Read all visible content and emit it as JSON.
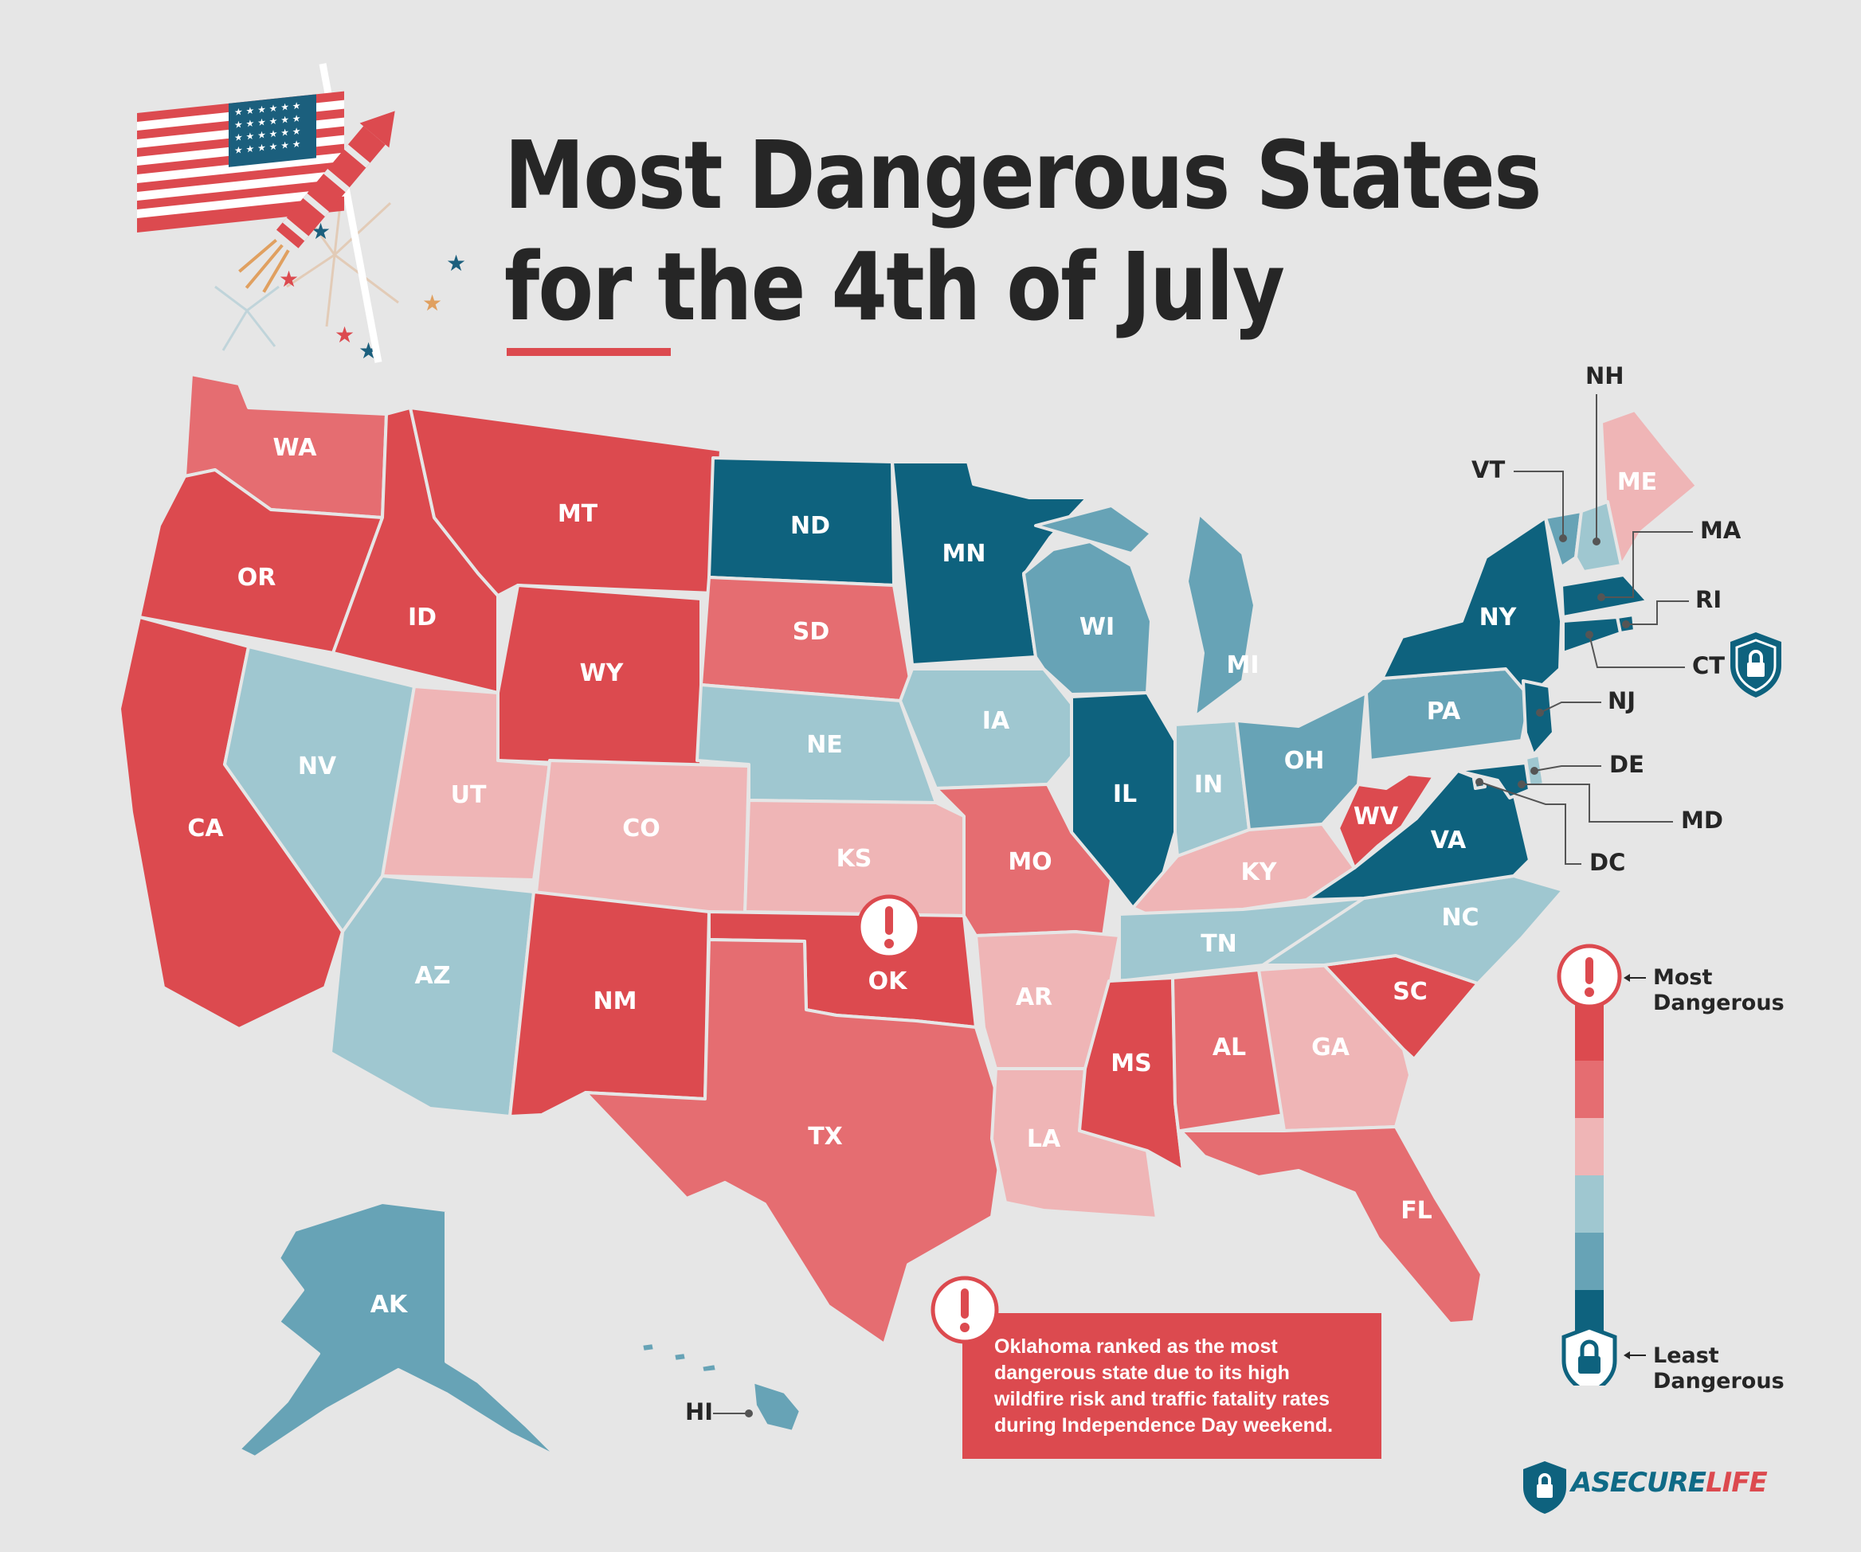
{
  "title": {
    "line1": "Most Dangerous States",
    "line2": "for the 4th of July"
  },
  "colors": {
    "level1": "#dc4a4f",
    "level2": "#e56d71",
    "level3": "#efb5b6",
    "level4": "#9fc7d0",
    "level5": "#67a3b6",
    "level6": "#0e627e",
    "background": "#e6e6e6"
  },
  "states": [
    {
      "abbr": "WA",
      "level": 2
    },
    {
      "abbr": "OR",
      "level": 1
    },
    {
      "abbr": "CA",
      "level": 1
    },
    {
      "abbr": "ID",
      "level": 1
    },
    {
      "abbr": "MT",
      "level": 1
    },
    {
      "abbr": "WY",
      "level": 1
    },
    {
      "abbr": "NV",
      "level": 4
    },
    {
      "abbr": "UT",
      "level": 3
    },
    {
      "abbr": "CO",
      "level": 3
    },
    {
      "abbr": "AZ",
      "level": 4
    },
    {
      "abbr": "NM",
      "level": 1
    },
    {
      "abbr": "ND",
      "level": 6
    },
    {
      "abbr": "SD",
      "level": 2
    },
    {
      "abbr": "NE",
      "level": 4
    },
    {
      "abbr": "KS",
      "level": 3
    },
    {
      "abbr": "OK",
      "level": 1
    },
    {
      "abbr": "TX",
      "level": 2
    },
    {
      "abbr": "MN",
      "level": 6
    },
    {
      "abbr": "IA",
      "level": 4
    },
    {
      "abbr": "MO",
      "level": 2
    },
    {
      "abbr": "AR",
      "level": 3
    },
    {
      "abbr": "LA",
      "level": 3
    },
    {
      "abbr": "WI",
      "level": 5
    },
    {
      "abbr": "IL",
      "level": 6
    },
    {
      "abbr": "MI",
      "level": 5
    },
    {
      "abbr": "IN",
      "level": 4
    },
    {
      "abbr": "OH",
      "level": 5
    },
    {
      "abbr": "KY",
      "level": 3
    },
    {
      "abbr": "TN",
      "level": 4
    },
    {
      "abbr": "MS",
      "level": 1
    },
    {
      "abbr": "AL",
      "level": 2
    },
    {
      "abbr": "GA",
      "level": 3
    },
    {
      "abbr": "FL",
      "level": 2
    },
    {
      "abbr": "SC",
      "level": 1
    },
    {
      "abbr": "NC",
      "level": 4
    },
    {
      "abbr": "VA",
      "level": 6
    },
    {
      "abbr": "WV",
      "level": 1
    },
    {
      "abbr": "PA",
      "level": 5
    },
    {
      "abbr": "NY",
      "level": 6
    },
    {
      "abbr": "ME",
      "level": 3
    },
    {
      "abbr": "AK",
      "level": 5
    },
    {
      "abbr": "HI",
      "level": 5
    },
    {
      "abbr": "VT",
      "level": 5
    },
    {
      "abbr": "NH",
      "level": 4
    },
    {
      "abbr": "MA",
      "level": 6
    },
    {
      "abbr": "RI",
      "level": 6
    },
    {
      "abbr": "CT",
      "level": 6
    },
    {
      "abbr": "NJ",
      "level": 6
    },
    {
      "abbr": "DE",
      "level": 4
    },
    {
      "abbr": "MD",
      "level": 6
    },
    {
      "abbr": "DC",
      "level": 6
    }
  ],
  "callout": {
    "text": "Oklahoma ranked as the most dangerous state due to its high wildfire risk and traffic fatality rates during Independence Day weekend."
  },
  "legend": {
    "most_line1": "Most",
    "most_line2": "Dangerous",
    "least_line1": "Least",
    "least_line2": "Dangerous"
  },
  "brand": {
    "part1": "ASECURE",
    "part2": "LIFE"
  },
  "icons": [
    "us-flag-icon",
    "firework-rocket-icon",
    "alert-icon",
    "lock-shield-icon"
  ]
}
